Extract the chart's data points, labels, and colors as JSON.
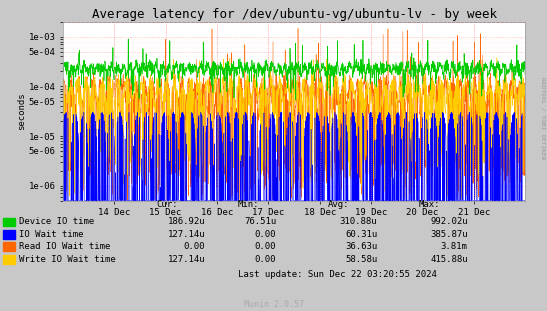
{
  "title": "Average latency for /dev/ubuntu-vg/ubuntu-lv - by week",
  "ylabel": "seconds",
  "fig_bg_color": "#C8C8C8",
  "plot_bg_color": "#FFFFFF",
  "grid_color": "#FF9999",
  "x_labels": [
    "14 Dec",
    "15 Dec",
    "16 Dec",
    "17 Dec",
    "18 Dec",
    "19 Dec",
    "20 Dec",
    "21 Dec"
  ],
  "ylim_min": 5e-07,
  "ylim_max": 0.002,
  "yticks": [
    1e-06,
    5e-06,
    1e-05,
    5e-05,
    0.0001,
    0.0005,
    0.001
  ],
  "ytick_labels": [
    "1e-06",
    "5e-06",
    "1e-05",
    "5e-05",
    "1e-04",
    "5e-04",
    "1e-03"
  ],
  "series": {
    "device_io": {
      "color": "#00CC00",
      "label": "Device IO time"
    },
    "io_wait": {
      "color": "#0000FF",
      "label": "IO Wait time"
    },
    "read_io": {
      "color": "#FF6600",
      "label": "Read IO Wait time"
    },
    "write_io": {
      "color": "#FFCC00",
      "label": "Write IO Wait time"
    }
  },
  "legend_rows": [
    {
      "label": "Device IO time",
      "color": "#00CC00",
      "cur": "186.92u",
      "min": "76.51u",
      "avg": "310.88u",
      "max": "992.02u"
    },
    {
      "label": "IO Wait time",
      "color": "#0000FF",
      "cur": "127.14u",
      "min": "0.00",
      "avg": "60.31u",
      "max": "385.87u"
    },
    {
      "label": "Read IO Wait time",
      "color": "#FF6600",
      "cur": "0.00",
      "min": "0.00",
      "avg": "36.63u",
      "max": "3.81m"
    },
    {
      "label": "Write IO Wait time",
      "color": "#FFCC00",
      "cur": "127.14u",
      "min": "0.00",
      "avg": "58.58u",
      "max": "415.88u"
    }
  ],
  "last_update": "Last update: Sun Dec 22 03:20:55 2024",
  "munin_version": "Munin 2.0.57",
  "rrdtool_label": "RRDTOOL / TOBI OETIKER",
  "title_fontsize": 9,
  "axis_fontsize": 6.5,
  "legend_fontsize": 6.5
}
